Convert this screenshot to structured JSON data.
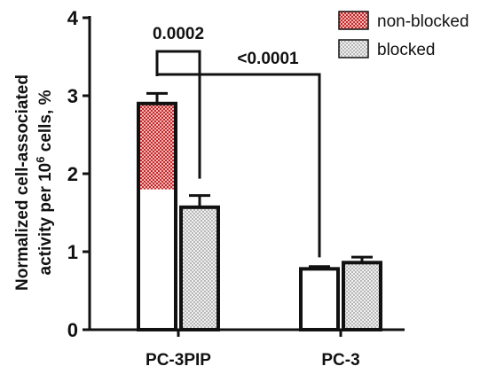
{
  "chart_data": {
    "type": "bar",
    "categories": [
      "PC-3PIP",
      "PC-3"
    ],
    "ylabel_line1": "Normalized cell-associated",
    "ylabel_line2_prefix": "activity per 10",
    "ylabel_line2_superscript": "6",
    "ylabel_line2_suffix": " cells, %",
    "ylim": [
      0,
      4
    ],
    "yticks": [
      0,
      1,
      2,
      3,
      4
    ],
    "series": [
      {
        "name": "non-blocked",
        "values": [
          2.9,
          0.78
        ],
        "errors": [
          0.13,
          0.03
        ],
        "fill_overlay_to": [
          1.8,
          null
        ]
      },
      {
        "name": "blocked",
        "values": [
          1.57,
          0.86
        ],
        "errors": [
          0.15,
          0.07
        ]
      }
    ],
    "annotations": [
      {
        "text": "0.0002",
        "from_series": 0,
        "from_category": 0,
        "to_series": 1,
        "to_category": 0
      },
      {
        "text": "<0.0001",
        "from_series": 0,
        "from_category": 0,
        "to_series": 0,
        "to_category": 1
      }
    ],
    "legend_position": "top-right",
    "colors": {
      "red_pattern_bg": "#c62828",
      "red_pattern_fg": "#f2b8b8",
      "gray_pattern_bg": "#b8b8b8",
      "gray_pattern_fg": "#f0f0f0",
      "stroke": "#111111"
    }
  }
}
